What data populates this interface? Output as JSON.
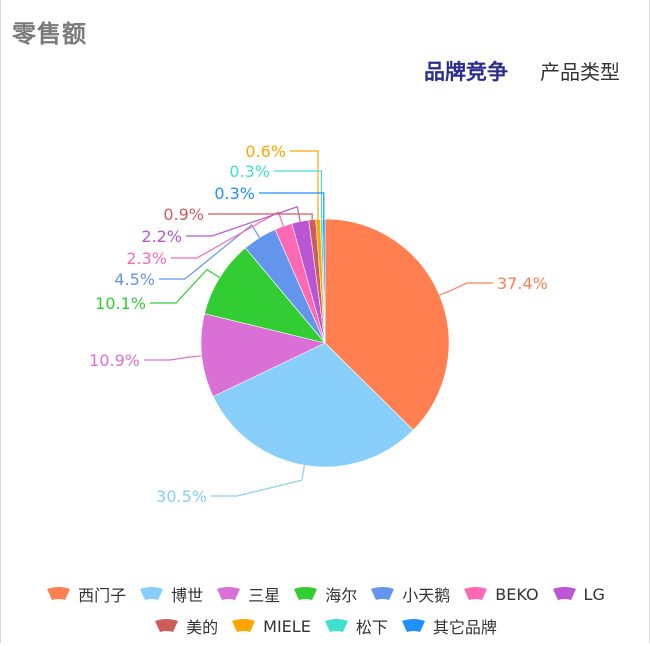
{
  "header": {
    "title": "零售额"
  },
  "tabs": [
    {
      "label": "品牌竞争",
      "active": true
    },
    {
      "label": "产品类型",
      "active": false
    }
  ],
  "chart_data": {
    "type": "pie",
    "legend_position": "bottom",
    "labels": [
      "西门子",
      "博世",
      "三星",
      "海尔",
      "小天鹅",
      "BEKO",
      "LG",
      "美的",
      "MIELE",
      "松下",
      "其它品牌"
    ],
    "values": [
      37.4,
      30.5,
      10.9,
      10.1,
      4.5,
      2.3,
      2.2,
      0.9,
      0.6,
      0.3,
      0.3
    ],
    "value_labels": [
      "37.4%",
      "30.5%",
      "10.9%",
      "10.1%",
      "4.5%",
      "2.3%",
      "2.2%",
      "0.9%",
      "0.6%",
      "0.3%",
      "0.3%"
    ],
    "colors": [
      "#ff7f50",
      "#87cefa",
      "#da70d6",
      "#32cd32",
      "#6495ed",
      "#ff69b4",
      "#ba55d3",
      "#cd5c5c",
      "#ffa500",
      "#40e0d0",
      "#1e90ff"
    ]
  }
}
